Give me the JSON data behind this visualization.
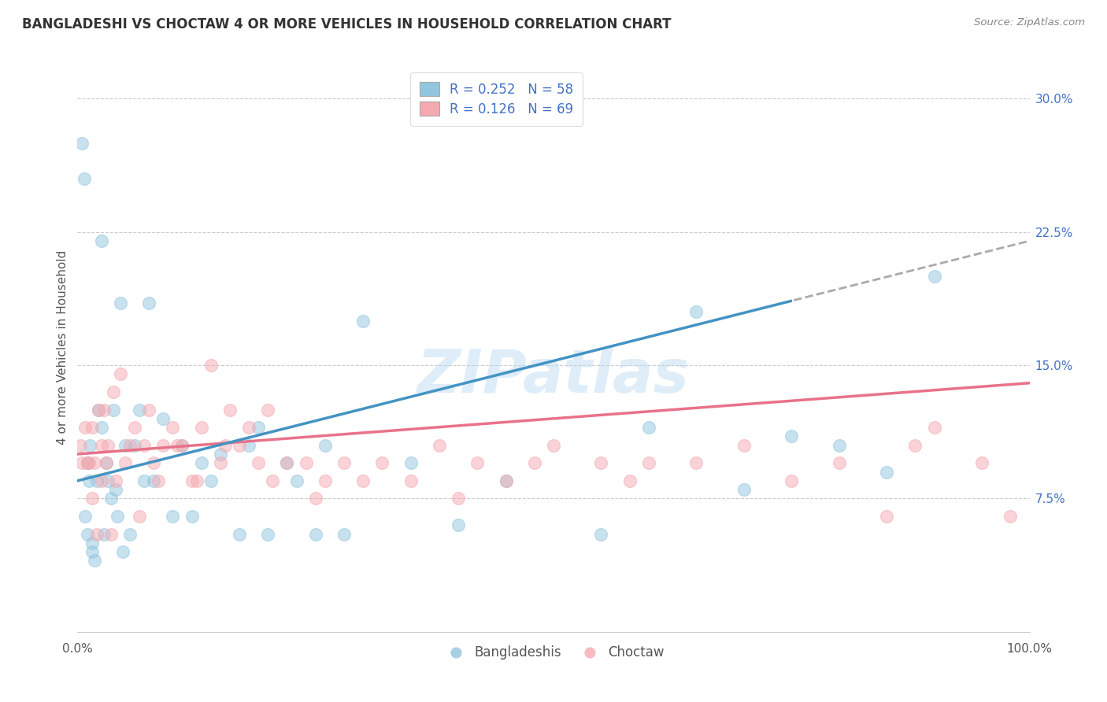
{
  "title": "BANGLADESHI VS CHOCTAW 4 OR MORE VEHICLES IN HOUSEHOLD CORRELATION CHART",
  "source": "Source: ZipAtlas.com",
  "ylabel": "4 or more Vehicles in Household",
  "xlim": [
    0.0,
    100.0
  ],
  "ylim": [
    0.0,
    32.0
  ],
  "ytick_vals": [
    7.5,
    15.0,
    22.5,
    30.0
  ],
  "ytick_labels": [
    "7.5%",
    "15.0%",
    "22.5%",
    "30.0%"
  ],
  "legend_line1": "R = 0.252   N = 58",
  "legend_line2": "R = 0.126   N = 69",
  "legend_label1": "Bangladeshis",
  "legend_label2": "Choctaw",
  "blue_scatter_color": "#92c5de",
  "pink_scatter_color": "#f4a9b0",
  "blue_line_color": "#4393c3",
  "pink_line_color": "#e8728a",
  "blue_line_dash_color": "#aaaaaa",
  "watermark": "ZIPatlas",
  "bangladeshi_x": [
    0.5,
    0.7,
    0.8,
    1.0,
    1.0,
    1.2,
    1.3,
    1.5,
    1.5,
    1.8,
    2.0,
    2.2,
    2.5,
    2.5,
    2.8,
    3.0,
    3.2,
    3.5,
    3.8,
    4.0,
    4.2,
    4.5,
    4.8,
    5.0,
    5.5,
    6.0,
    6.5,
    7.0,
    7.5,
    8.0,
    9.0,
    10.0,
    11.0,
    12.0,
    13.0,
    14.0,
    15.0,
    17.0,
    18.0,
    19.0,
    20.0,
    22.0,
    23.0,
    25.0,
    26.0,
    28.0,
    30.0,
    35.0,
    40.0,
    45.0,
    55.0,
    60.0,
    65.0,
    70.0,
    75.0,
    80.0,
    85.0,
    90.0
  ],
  "bangladeshi_y": [
    27.5,
    25.5,
    6.5,
    9.5,
    5.5,
    8.5,
    10.5,
    5.0,
    4.5,
    4.0,
    8.5,
    12.5,
    11.5,
    22.0,
    5.5,
    9.5,
    8.5,
    7.5,
    12.5,
    8.0,
    6.5,
    18.5,
    4.5,
    10.5,
    5.5,
    10.5,
    12.5,
    8.5,
    18.5,
    8.5,
    12.0,
    6.5,
    10.5,
    6.5,
    9.5,
    8.5,
    10.0,
    5.5,
    10.5,
    11.5,
    5.5,
    9.5,
    8.5,
    5.5,
    10.5,
    5.5,
    17.5,
    9.5,
    6.0,
    8.5,
    5.5,
    11.5,
    18.0,
    8.0,
    11.0,
    10.5,
    9.0,
    20.0
  ],
  "choctaw_x": [
    0.3,
    0.5,
    0.8,
    1.0,
    1.2,
    1.5,
    1.5,
    1.8,
    2.0,
    2.2,
    2.5,
    2.5,
    2.8,
    3.0,
    3.2,
    3.5,
    3.8,
    4.0,
    4.5,
    5.0,
    5.5,
    6.0,
    6.5,
    7.0,
    7.5,
    8.0,
    8.5,
    9.0,
    10.0,
    11.0,
    12.0,
    13.0,
    14.0,
    15.0,
    16.0,
    17.0,
    18.0,
    19.0,
    20.0,
    22.0,
    24.0,
    25.0,
    26.0,
    28.0,
    30.0,
    32.0,
    35.0,
    38.0,
    40.0,
    42.0,
    45.0,
    48.0,
    50.0,
    55.0,
    58.0,
    60.0,
    65.0,
    70.0,
    75.0,
    80.0,
    85.0,
    88.0,
    90.0,
    95.0,
    98.0,
    10.5,
    12.5,
    15.5,
    20.5
  ],
  "choctaw_y": [
    10.5,
    9.5,
    11.5,
    9.5,
    9.5,
    11.5,
    7.5,
    9.5,
    5.5,
    12.5,
    10.5,
    8.5,
    12.5,
    9.5,
    10.5,
    5.5,
    13.5,
    8.5,
    14.5,
    9.5,
    10.5,
    11.5,
    6.5,
    10.5,
    12.5,
    9.5,
    8.5,
    10.5,
    11.5,
    10.5,
    8.5,
    11.5,
    15.0,
    9.5,
    12.5,
    10.5,
    11.5,
    9.5,
    12.5,
    9.5,
    9.5,
    7.5,
    8.5,
    9.5,
    8.5,
    9.5,
    8.5,
    10.5,
    7.5,
    9.5,
    8.5,
    9.5,
    10.5,
    9.5,
    8.5,
    9.5,
    9.5,
    10.5,
    8.5,
    9.5,
    6.5,
    10.5,
    11.5,
    9.5,
    6.5,
    10.5,
    8.5,
    10.5,
    8.5
  ]
}
